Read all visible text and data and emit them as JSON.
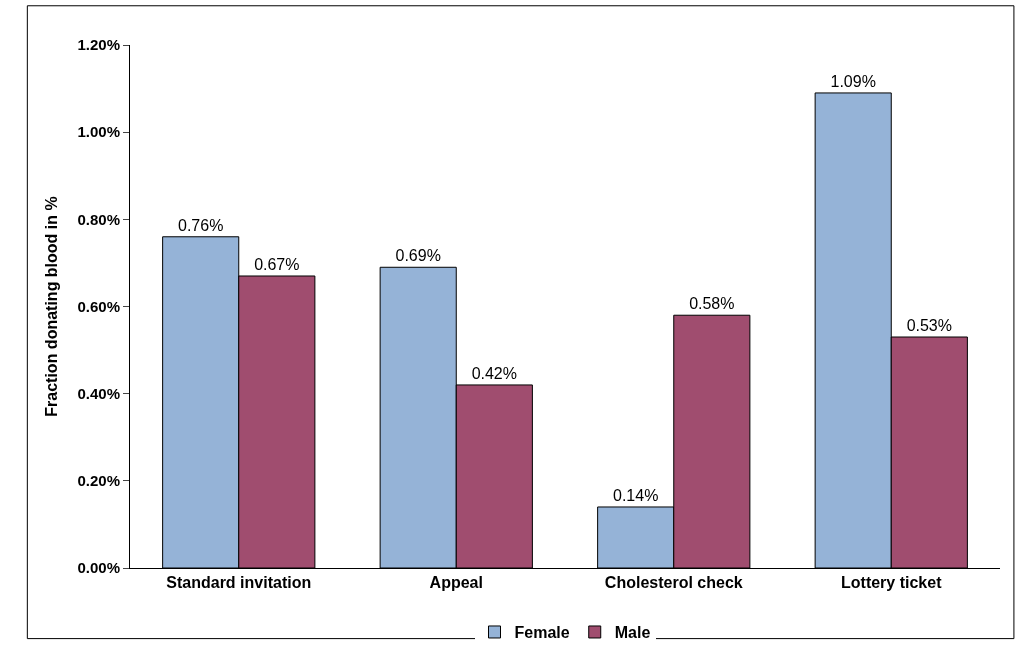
{
  "chart_data": {
    "type": "bar",
    "ylabel": "Fraction donating blood in %",
    "categories": [
      "Standard invitation",
      "Appeal",
      "Cholesterol check",
      "Lottery ticket"
    ],
    "series": [
      {
        "name": "Female",
        "color": "#95b3d7",
        "values": [
          0.76,
          0.69,
          0.14,
          1.09
        ],
        "value_labels": [
          "0.76%",
          "0.69%",
          "0.14%",
          "1.09%"
        ]
      },
      {
        "name": "Male",
        "color": "#a04d6f",
        "values": [
          0.67,
          0.42,
          0.58,
          0.53
        ],
        "value_labels": [
          "0.67%",
          "0.42%",
          "0.58%",
          "0.53%"
        ]
      }
    ],
    "ylim": [
      0,
      1.2
    ],
    "yticks": [
      {
        "value": 0,
        "label": "0.00%"
      },
      {
        "value": 0.2,
        "label": "0.20%"
      },
      {
        "value": 0.4,
        "label": "0.40%"
      },
      {
        "value": 0.6,
        "label": "0.60%"
      },
      {
        "value": 0.8,
        "label": "0.80%"
      },
      {
        "value": 1.0,
        "label": "1.00%"
      },
      {
        "value": 1.2,
        "label": "1.20%"
      }
    ],
    "legend": "bottom"
  }
}
